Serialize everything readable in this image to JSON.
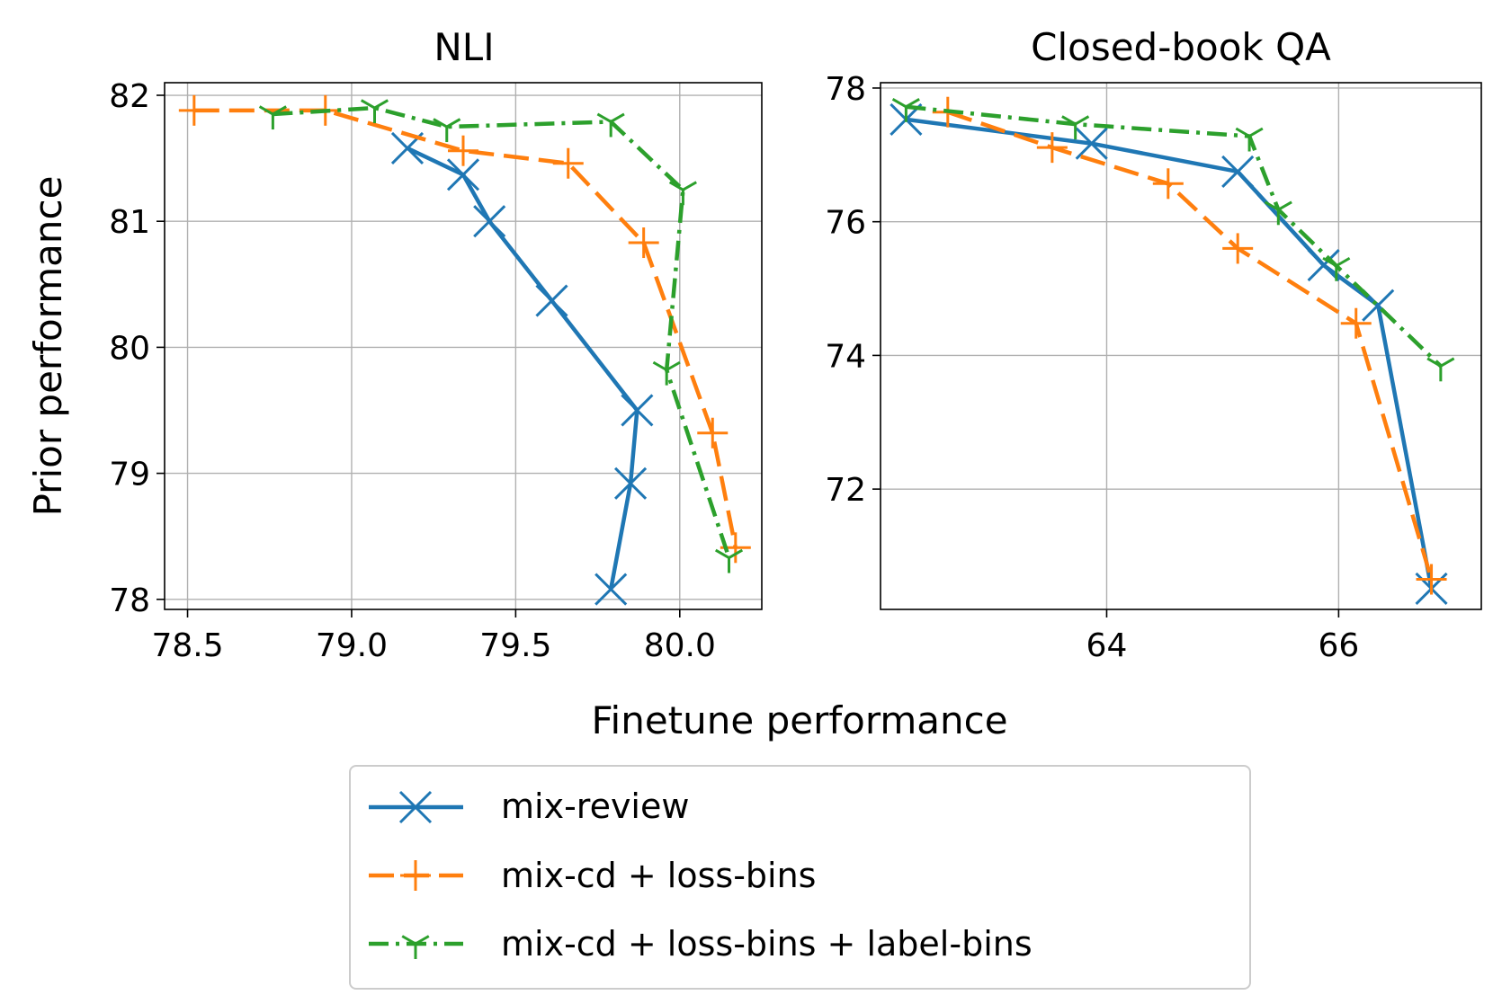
{
  "figure": {
    "shared_xlabel": "Finetune performance",
    "shared_ylabel": "Prior performance"
  },
  "legend": {
    "placement": "bottom-center",
    "entries": [
      {
        "label": "mix-review",
        "color": "#1f77b4",
        "marker": "x",
        "line": "solid"
      },
      {
        "label": "mix-cd + loss-bins",
        "color": "#ff7f0e",
        "marker": "+",
        "line": "dashed"
      },
      {
        "label": "mix-cd + loss-bins + label-bins",
        "color": "#2ca02c",
        "marker": "tri_down",
        "line": "dashdot"
      }
    ]
  },
  "chart_data": [
    {
      "type": "line",
      "title": "NLI",
      "xlabel": "Finetune performance",
      "ylabel": "Prior performance",
      "xlim": [
        78.43,
        80.25
      ],
      "ylim": [
        77.92,
        82.1
      ],
      "xticks": [
        "78.5",
        "79.0",
        "79.5",
        "80.0"
      ],
      "xtick_values": [
        78.5,
        79.0,
        79.5,
        80.0
      ],
      "yticks": [
        "78",
        "79",
        "80",
        "81",
        "82"
      ],
      "ytick_values": [
        78,
        79,
        80,
        81,
        82
      ],
      "grid": true,
      "series": [
        {
          "name": "mix-review",
          "color": "#1f77b4",
          "x": [
            79.17,
            79.34,
            79.42,
            79.61,
            79.87,
            79.85,
            79.79
          ],
          "y": [
            81.58,
            81.37,
            81.0,
            80.37,
            79.5,
            78.92,
            78.08
          ]
        },
        {
          "name": "mix-cd + loss-bins",
          "color": "#ff7f0e",
          "x": [
            78.52,
            78.92,
            79.34,
            79.66,
            79.89,
            80.1,
            80.17
          ],
          "y": [
            81.88,
            81.88,
            81.56,
            81.46,
            80.83,
            79.32,
            78.41
          ]
        },
        {
          "name": "mix-cd + loss-bins + label-bins",
          "color": "#2ca02c",
          "x": [
            78.76,
            79.07,
            79.29,
            79.79,
            80.01,
            79.96,
            80.15
          ],
          "y": [
            81.85,
            81.9,
            81.75,
            81.79,
            81.25,
            79.82,
            78.33
          ]
        }
      ]
    },
    {
      "type": "line",
      "title": "Closed-book QA",
      "xlabel": "Finetune performance",
      "ylabel": "Prior performance",
      "xlim": [
        62.05,
        67.23
      ],
      "ylim": [
        70.2,
        78.08
      ],
      "xticks": [
        "64",
        "66"
      ],
      "xtick_values": [
        64,
        66
      ],
      "yticks": [
        "72",
        "74",
        "76",
        "78"
      ],
      "ytick_values": [
        72,
        74,
        76,
        78
      ],
      "grid": true,
      "series": [
        {
          "name": "mix-review",
          "color": "#1f77b4",
          "x": [
            62.27,
            63.87,
            65.13,
            65.87,
            66.34,
            66.8
          ],
          "y": [
            77.53,
            77.17,
            76.75,
            75.35,
            74.75,
            70.51
          ]
        },
        {
          "name": "mix-cd + loss-bins",
          "color": "#ff7f0e",
          "x": [
            62.63,
            63.53,
            64.53,
            65.13,
            66.15,
            66.8
          ],
          "y": [
            77.64,
            77.11,
            76.57,
            75.6,
            74.48,
            70.65
          ]
        },
        {
          "name": "mix-cd + loss-bins + label-bins",
          "color": "#2ca02c",
          "x": [
            62.27,
            63.73,
            65.23,
            65.48,
            65.98,
            66.88
          ],
          "y": [
            77.72,
            77.46,
            77.28,
            76.18,
            75.34,
            73.84
          ]
        }
      ]
    }
  ]
}
